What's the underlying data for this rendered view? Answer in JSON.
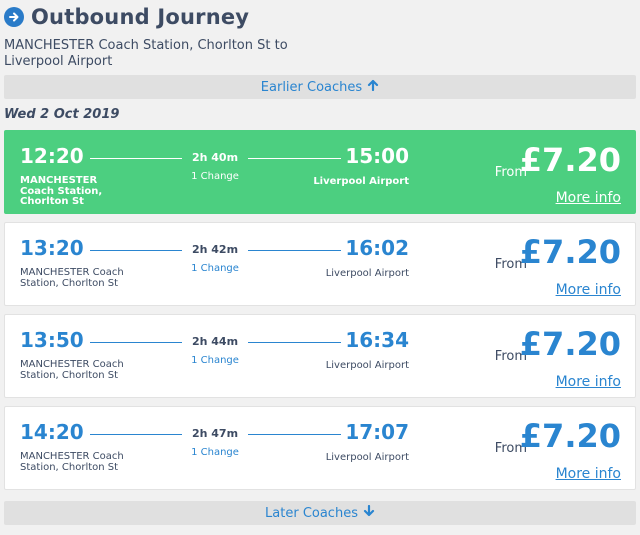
{
  "header": {
    "title": "Outbound Journey",
    "route": "MANCHESTER Coach Station, Chorlton St to Liverpool Airport"
  },
  "nav": {
    "earlier_label": "Earlier Coaches",
    "later_label": "Later Coaches"
  },
  "date": "Wed 2 Oct 2019",
  "colors": {
    "accent": "#2a85d0",
    "selected": "#4ccf80",
    "text": "#3d4b63"
  },
  "journeys": [
    {
      "depart": "12:20",
      "depart_station": "MANCHESTER Coach Station, Chorlton St",
      "arrive": "15:00",
      "arrive_station": "Liverpool Airport",
      "duration": "2h 40m",
      "changes": "1 Change",
      "from_label": "From",
      "price": "£7.20",
      "more_label": "More info",
      "selected": true
    },
    {
      "depart": "13:20",
      "depart_station": "MANCHESTER Coach Station, Chorlton St",
      "arrive": "16:02",
      "arrive_station": "Liverpool Airport",
      "duration": "2h 42m",
      "changes": "1 Change",
      "from_label": "From",
      "price": "£7.20",
      "more_label": "More info",
      "selected": false
    },
    {
      "depart": "13:50",
      "depart_station": "MANCHESTER Coach Station, Chorlton St",
      "arrive": "16:34",
      "arrive_station": "Liverpool Airport",
      "duration": "2h 44m",
      "changes": "1 Change",
      "from_label": "From",
      "price": "£7.20",
      "more_label": "More info",
      "selected": false
    },
    {
      "depart": "14:20",
      "depart_station": "MANCHESTER Coach Station, Chorlton St",
      "arrive": "17:07",
      "arrive_station": "Liverpool Airport",
      "duration": "2h 47m",
      "changes": "1 Change",
      "from_label": "From",
      "price": "£7.20",
      "more_label": "More info",
      "selected": false
    }
  ]
}
